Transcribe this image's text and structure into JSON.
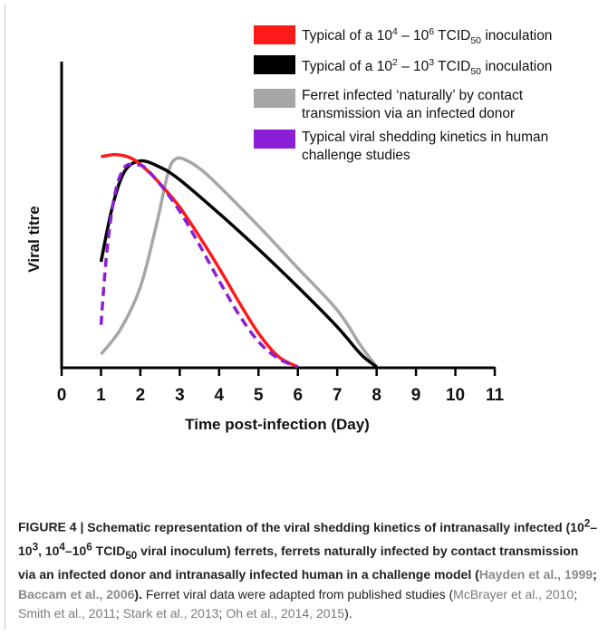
{
  "chart_data": {
    "type": "line",
    "title": "",
    "xlabel": "Time post-infection (Day)",
    "ylabel": "Viral titre",
    "xlim": [
      0,
      11
    ],
    "ylim": [
      0,
      1
    ],
    "x_ticks": [
      "0",
      "1",
      "2",
      "3",
      "4",
      "5",
      "6",
      "7",
      "8",
      "9",
      "10",
      "11"
    ],
    "grid": false,
    "legend_position": "top-right",
    "series": [
      {
        "name": "Typical of a 10^4 – 10^6 TCID50 inoculation",
        "color": "#ff1a1a",
        "style": "solid",
        "x": [
          1,
          1.4,
          1.8,
          2.2,
          2.6,
          3,
          3.5,
          4,
          4.5,
          5,
          5.5,
          6
        ],
        "y": [
          1.0,
          1.01,
          0.99,
          0.93,
          0.85,
          0.76,
          0.62,
          0.47,
          0.31,
          0.16,
          0.05,
          0
        ]
      },
      {
        "name": "Typical of a 10^2 – 10^3 TCID50 inoculation",
        "color": "#000000",
        "style": "solid",
        "x": [
          1,
          1.3,
          1.6,
          2,
          2.5,
          3,
          4,
          5,
          6,
          7,
          7.6,
          8
        ],
        "y": [
          0.5,
          0.77,
          0.93,
          0.98,
          0.95,
          0.89,
          0.73,
          0.56,
          0.38,
          0.19,
          0.06,
          0
        ]
      },
      {
        "name": "Ferret infected ‘naturally’ by contact transmission via an infected donor",
        "color": "#a6a6a6",
        "style": "solid",
        "x": [
          1,
          1.5,
          2,
          2.4,
          2.7,
          2.9,
          3.2,
          3.6,
          4,
          5,
          6,
          7,
          7.6,
          8
        ],
        "y": [
          0.06,
          0.18,
          0.38,
          0.67,
          0.92,
          0.99,
          0.98,
          0.93,
          0.86,
          0.67,
          0.47,
          0.27,
          0.1,
          0
        ]
      },
      {
        "name": "Typical viral shedding kinetics in human challenge studies",
        "color": "#8a1fd6",
        "style": "dashed",
        "x": [
          1,
          1.15,
          1.35,
          1.6,
          1.9,
          2.1,
          2.5,
          3,
          3.5,
          4,
          4.5,
          5,
          5.5,
          6
        ],
        "y": [
          0.2,
          0.55,
          0.82,
          0.95,
          0.96,
          0.95,
          0.87,
          0.74,
          0.58,
          0.41,
          0.25,
          0.12,
          0.04,
          0
        ]
      }
    ]
  },
  "legend": [
    {
      "color": "#ff1a1a",
      "pre": "Typical of a 10",
      "sup1": "4",
      "mid": " – 10",
      "sup2": "6",
      "tcid": " TCID",
      "sub": "50",
      "post": " inoculation"
    },
    {
      "color": "#000000",
      "pre": "Typical of a 10",
      "sup1": "2",
      "mid": " – 10",
      "sup2": "3",
      "tcid": " TCID",
      "sub": "50",
      "post": " inoculation"
    },
    {
      "color": "#a6a6a6",
      "line1": "Ferret infected ‘naturally’ by contact",
      "line2": "transmission via an infected donor"
    },
    {
      "color": "#8a1fd6",
      "line1": "Typical viral shedding kinetics in human",
      "line2": "challenge studies"
    }
  ],
  "caption": {
    "fig_label": "FIGURE 4 | ",
    "bold_1": "Schematic representation of the viral shedding kinetics of intranasally infected (10",
    "sup_a": "2",
    "b_dash1": "–10",
    "sup_b": "3",
    "b_comma": ", 10",
    "sup_c": "4",
    "b_dash2": "–10",
    "sup_d": "6",
    "b_tcid": " TCID",
    "sub_50": "50",
    "bold_2": " viral inoculum) ferrets, ferrets naturally infected by contact transmission via an infected donor and intranasally infected human in a challenge model (",
    "ref_1": "Hayden et al., 1999",
    "semi": "; ",
    "ref_2": "Baccam et al., 2006",
    "bold_3": ").",
    "plain_1": " Ferret viral data were adapted from published studies (",
    "ref_3": "McBrayer et al., 2010",
    "sep1": "; ",
    "ref_4": "Smith et al., 2011",
    "sep2": "; ",
    "ref_5": "Stark et al., 2013",
    "sep3": "; ",
    "ref_6": "Oh et al., 2014, 2015",
    "plain_2": ")."
  }
}
